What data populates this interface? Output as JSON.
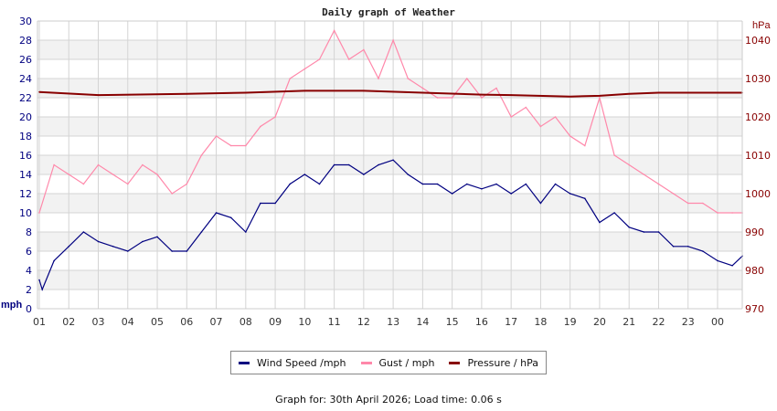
{
  "chart_data": {
    "type": "line",
    "title": "Daily graph of Weather",
    "ylabel": "mph",
    "y2label": "hPa",
    "ylim": [
      0,
      30
    ],
    "y2lim": [
      970,
      1045
    ],
    "yticks": [
      0,
      2,
      4,
      6,
      8,
      10,
      12,
      14,
      16,
      18,
      20,
      22,
      24,
      26,
      28,
      30
    ],
    "y2ticks": [
      970,
      980,
      990,
      1000,
      1010,
      1020,
      1030,
      1040
    ],
    "xticks": [
      "01",
      "02",
      "03",
      "04",
      "05",
      "06",
      "07",
      "08",
      "09",
      "10",
      "11",
      "12",
      "13",
      "14",
      "15",
      "16",
      "17",
      "18",
      "19",
      "20",
      "21",
      "22",
      "23",
      "00"
    ],
    "xlim": [
      0,
      23.84
    ],
    "grid": true,
    "legend_position": "bottom",
    "series": [
      {
        "name": "Wind Speed /mph",
        "color": "#000080",
        "axis": "left",
        "x": [
          0,
          0.1,
          0.5,
          1,
          1.5,
          2,
          2.5,
          3,
          3.5,
          4,
          4.5,
          5,
          5.5,
          6,
          6.5,
          7,
          7.5,
          8,
          8.5,
          9,
          9.5,
          10,
          10.5,
          11,
          11.5,
          12,
          12.5,
          13,
          13.5,
          14,
          14.5,
          15,
          15.5,
          16,
          16.5,
          17,
          17.5,
          18,
          18.5,
          19,
          19.5,
          20,
          20.5,
          21,
          21.5,
          22,
          22.5,
          23,
          23.5,
          24,
          24.5,
          24.84
        ],
        "y": [
          3,
          2,
          5,
          6.5,
          8,
          7,
          6.5,
          6,
          7,
          7.5,
          6,
          6,
          8,
          10,
          9.5,
          8,
          11,
          11,
          13,
          14,
          13,
          15,
          15,
          14,
          15,
          15.5,
          14,
          13,
          13,
          12,
          13,
          12.5,
          13,
          12,
          13,
          11,
          13,
          12,
          11.5,
          9,
          10,
          8.5,
          8,
          8,
          6.5,
          6.5,
          6,
          5,
          4.5,
          5.5,
          5.5,
          5.5
        ]
      },
      {
        "name": "Gust / mph",
        "color": "#ff88aa",
        "axis": "left",
        "x": [
          0,
          0.5,
          1,
          1.5,
          2,
          2.5,
          3,
          3.5,
          4,
          4.5,
          5,
          5.5,
          6,
          6.5,
          7,
          7.5,
          8,
          8.5,
          9,
          9.5,
          10,
          10.5,
          11,
          11.5,
          12,
          12.5,
          13,
          13.5,
          14,
          14.5,
          15,
          15.5,
          16,
          16.5,
          17,
          17.5,
          18,
          18.5,
          19,
          19.5,
          20,
          20.5,
          21,
          21.5,
          22,
          22.5,
          23,
          23.5,
          23.84
        ],
        "y": [
          10,
          15,
          14,
          13,
          15,
          14,
          13,
          15,
          14,
          12,
          13,
          16,
          18,
          17,
          17,
          19,
          20,
          24,
          25,
          26,
          29,
          26,
          27,
          24,
          28,
          24,
          23,
          22,
          22,
          24,
          22,
          23,
          20,
          21,
          19,
          20,
          18,
          17,
          22,
          16,
          15,
          14,
          13,
          12,
          11,
          11,
          10,
          10,
          10
        ]
      },
      {
        "name": "Pressure / hPa",
        "color": "#880000",
        "axis": "right",
        "x": [
          0,
          2,
          5,
          7,
          9,
          11,
          13,
          15,
          16,
          18,
          19,
          20,
          21,
          23.84
        ],
        "y": [
          1026.5,
          1025.7,
          1026,
          1026.3,
          1026.8,
          1026.8,
          1026.3,
          1025.8,
          1025.7,
          1025.3,
          1025.5,
          1026,
          1026.3,
          1026.3
        ]
      }
    ]
  },
  "footer": "Graph for: 30th April 2026; Load time: 0.06 s"
}
